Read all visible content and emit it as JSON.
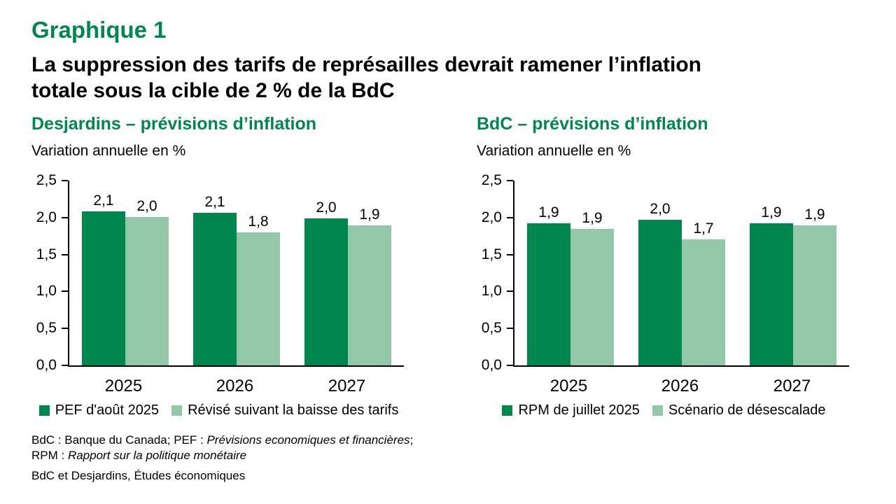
{
  "page": {
    "kicker": "Graphique 1",
    "title_line1": "La suppression des tarifs de représailles devrait ramener l’inflation",
    "title_line2": "totale sous la cible de 2 % de la BdC",
    "accent_color": "#00874E"
  },
  "panels": [
    {
      "header": "Desjardins – prévisions d’inflation",
      "units_label": "Variation annuelle en %"
    },
    {
      "header": "BdC – prévisions d’inflation",
      "units_label": "Variation annuelle en %"
    }
  ],
  "chart_data": [
    {
      "type": "bar",
      "title": "Desjardins – prévisions d’inflation",
      "ylabel": "Variation annuelle en %",
      "categories": [
        "2025",
        "2026",
        "2027"
      ],
      "series": [
        {
          "name": "PEF d'août 2025",
          "color": "#00874E",
          "values": [
            2.08,
            2.06,
            1.99
          ],
          "labels": [
            "2,1",
            "2,1",
            "2,0"
          ]
        },
        {
          "name": "Révisé suivant la baisse des tarifs",
          "color": "#92C7A8",
          "values": [
            2.01,
            1.8,
            1.89
          ],
          "labels": [
            "2,0",
            "1,8",
            "1,9"
          ]
        }
      ],
      "ylim": [
        0,
        2.5
      ],
      "ytick_step": 0.5,
      "ytick_labels": [
        "0,0",
        "0,5",
        "1,0",
        "1,5",
        "2,0",
        "2,5"
      ],
      "grid": false,
      "legend_position": "bottom"
    },
    {
      "type": "bar",
      "title": "BdC – prévisions d’inflation",
      "ylabel": "Variation annuelle en %",
      "categories": [
        "2025",
        "2026",
        "2027"
      ],
      "series": [
        {
          "name": "RPM de juillet 2025",
          "color": "#00874E",
          "values": [
            1.92,
            1.97,
            1.92
          ],
          "labels": [
            "1,9",
            "2,0",
            "1,9"
          ]
        },
        {
          "name": "Scénario de désescalade",
          "color": "#92C7A8",
          "values": [
            1.85,
            1.7,
            1.89
          ],
          "labels": [
            "1,9",
            "1,7",
            "1,9"
          ]
        }
      ],
      "ylim": [
        0,
        2.5
      ],
      "ytick_step": 0.5,
      "ytick_labels": [
        "0,0",
        "0,5",
        "1,0",
        "1,5",
        "2,0",
        "2,5"
      ],
      "grid": false,
      "legend_position": "bottom"
    }
  ],
  "footnote": {
    "line1_prefix": "BdC : Banque du Canada; PEF : ",
    "line1_italic": "Prévisions economiques et financières",
    "line1_suffix": ";",
    "line2_prefix": "RPM : ",
    "line2_italic": "Rapport sur la politique monétaire",
    "source": "BdC et Desjardins, Études économiques"
  }
}
